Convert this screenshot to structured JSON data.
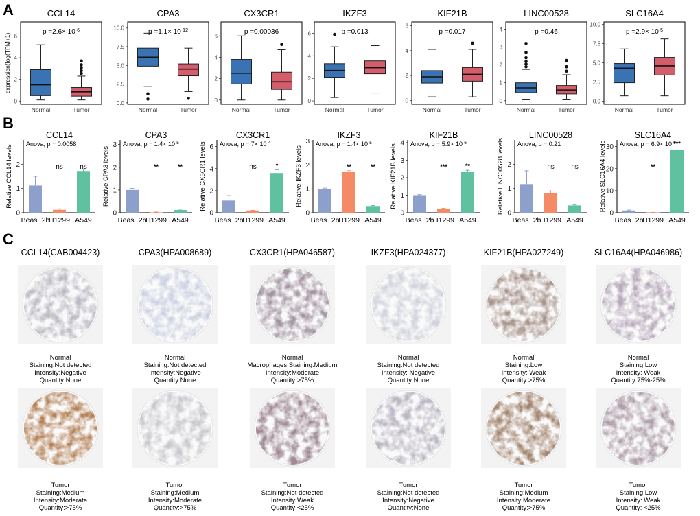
{
  "figure": {
    "panel_letters": [
      "A",
      "B",
      "C"
    ],
    "colors": {
      "normal_box": "#3a73b3",
      "tumor_box": "#d45d6b",
      "beas_bar": "#8da0cb",
      "h1299_bar": "#f58b66",
      "a549_bar": "#5fc1a0"
    }
  },
  "chart_data": [
    {
      "panel": "A",
      "type": "boxplot",
      "ylabel": "expression(log(TPM+1)",
      "categories": [
        "Normal",
        "Tumor"
      ],
      "charts": [
        {
          "title": "CCL14",
          "p_label": "p =2.6× 10",
          "p_exp": "-6",
          "ylim": [
            -0.3,
            7.3
          ],
          "yticks": [
            0,
            2,
            4,
            6
          ],
          "boxes": [
            {
              "min": 0.1,
              "q1": 0.5,
              "median": 1.5,
              "q3": 2.9,
              "max": 5.2,
              "outliers": []
            },
            {
              "min": 0.1,
              "q1": 0.45,
              "median": 0.85,
              "q3": 1.25,
              "max": 2.3,
              "outliers": [
                2.55,
                2.8,
                3.1,
                3.35,
                3.7
              ]
            }
          ]
        },
        {
          "title": "CPA3",
          "p_label": "p =1.1× 10",
          "p_exp": "-12",
          "ylim": [
            -0.2,
            10.8
          ],
          "yticks": [
            0.0,
            2.5,
            5.0,
            7.5,
            10.0
          ],
          "boxes": [
            {
              "min": 2.2,
              "q1": 4.9,
              "median": 6.1,
              "q3": 7.3,
              "max": 9.3,
              "outliers": [
                1.2,
                0.5
              ]
            },
            {
              "min": 1.5,
              "q1": 3.6,
              "median": 4.5,
              "q3": 5.2,
              "max": 7.3,
              "outliers": [
                0.6
              ]
            }
          ]
        },
        {
          "title": "CX3CR1",
          "p_label": "p =0.00036",
          "p_exp": "",
          "ylim": [
            -0.4,
            7.3
          ],
          "yticks": [
            0,
            2,
            4,
            6
          ],
          "boxes": [
            {
              "min": 0.0,
              "q1": 1.5,
              "median": 2.5,
              "q3": 3.8,
              "max": 6.0,
              "outliers": []
            },
            {
              "min": 0.0,
              "q1": 1.0,
              "median": 1.7,
              "q3": 2.6,
              "max": 4.7,
              "outliers": [
                5.2
              ]
            }
          ]
        },
        {
          "title": "IKZF3",
          "p_label": "p =0.013",
          "p_exp": "",
          "ylim": [
            -0.3,
            7.0
          ],
          "yticks": [
            0,
            2,
            4,
            6
          ],
          "boxes": [
            {
              "min": 0.3,
              "q1": 2.1,
              "median": 2.7,
              "q3": 3.3,
              "max": 4.8,
              "outliers": [
                5.9
              ]
            },
            {
              "min": 0.7,
              "q1": 2.4,
              "median": 2.95,
              "q3": 3.55,
              "max": 4.9,
              "outliers": []
            }
          ]
        },
        {
          "title": "KIF21B",
          "p_label": "p =0.017",
          "p_exp": "",
          "ylim": [
            -0.3,
            6.3
          ],
          "yticks": [
            0,
            2,
            4,
            6
          ],
          "boxes": [
            {
              "min": 0.3,
              "q1": 1.4,
              "median": 1.9,
              "q3": 2.4,
              "max": 4.1,
              "outliers": []
            },
            {
              "min": 0.3,
              "q1": 1.55,
              "median": 2.1,
              "q3": 2.65,
              "max": 4.1,
              "outliers": [
                4.6
              ]
            }
          ]
        },
        {
          "title": "LINC00528",
          "p_label": "p =0.46",
          "p_exp": "",
          "ylim": [
            -0.2,
            4.4
          ],
          "yticks": [
            0,
            1,
            2,
            3,
            4
          ],
          "boxes": [
            {
              "min": 0.05,
              "q1": 0.45,
              "median": 0.72,
              "q3": 1.0,
              "max": 1.75,
              "outliers": [
                1.9,
                2.05,
                2.2,
                2.4,
                2.7,
                3.2
              ]
            },
            {
              "min": 0.05,
              "q1": 0.38,
              "median": 0.6,
              "q3": 0.85,
              "max": 1.45,
              "outliers": [
                1.65,
                1.9,
                2.25
              ]
            }
          ]
        },
        {
          "title": "SLC16A4",
          "p_label": "p =2.9× 10",
          "p_exp": "-5",
          "ylim": [
            -0.4,
            10.3
          ],
          "yticks": [
            0.0,
            2.5,
            5.0,
            7.5,
            10.0
          ],
          "boxes": [
            {
              "min": 0.7,
              "q1": 2.4,
              "median": 4.3,
              "q3": 4.9,
              "max": 6.8,
              "outliers": []
            },
            {
              "min": 0.7,
              "q1": 3.4,
              "median": 4.6,
              "q3": 5.7,
              "max": 8.1,
              "outliers": []
            }
          ]
        }
      ]
    },
    {
      "panel": "B",
      "type": "bar",
      "categories": [
        "Beas−2b",
        "H1299",
        "A549"
      ],
      "charts": [
        {
          "title": "CCL14",
          "ylabel": "Relative CCL14 levels",
          "anova": "Anova, p = 0.0058",
          "anova_exp": "",
          "ylim": [
            0,
            3.0
          ],
          "yticks": [
            0,
            1,
            2
          ],
          "values": [
            1.12,
            0.12,
            1.72
          ],
          "errors": [
            0.38,
            0.04,
            0.08
          ],
          "sig": [
            "",
            "ns",
            "ns"
          ]
        },
        {
          "title": "CPA3",
          "ylabel": "Relative CPA3 levels",
          "anova": "Anova, p = 1.4× 10",
          "anova_exp": "-5",
          "ylim": [
            0,
            3.2
          ],
          "yticks": [
            0,
            1,
            2,
            3
          ],
          "values": [
            1.0,
            0.02,
            0.12
          ],
          "errors": [
            0.07,
            0.01,
            0.03
          ],
          "sig": [
            "",
            "**",
            "**"
          ]
        },
        {
          "title": "CX3CR1",
          "ylabel": "Relative CX3CR1 levels",
          "anova": "Anova, p = 7× 10",
          "anova_exp": "-4",
          "ylim": [
            0,
            6.6
          ],
          "yticks": [
            0,
            2,
            4,
            6
          ],
          "values": [
            1.1,
            0.2,
            3.6
          ],
          "errors": [
            0.45,
            0.02,
            0.3
          ],
          "sig": [
            "",
            "ns",
            "*"
          ]
        },
        {
          "title": "IKZF3",
          "ylabel": "Relative IKZF3 levels",
          "anova": "Anova, p = 1.4× 10",
          "anova_exp": "-5",
          "ylim": [
            0,
            3.05
          ],
          "yticks": [
            0,
            1,
            2,
            3
          ],
          "values": [
            1.0,
            1.7,
            0.28
          ],
          "errors": [
            0.03,
            0.06,
            0.02
          ],
          "sig": [
            "",
            "**",
            "**"
          ]
        },
        {
          "title": "KIF21B",
          "ylabel": "Relative KIF21B levels",
          "anova": "Anova, p = 5.9× 10",
          "anova_exp": "-6",
          "ylim": [
            0,
            4.15
          ],
          "yticks": [
            0,
            1,
            2,
            3,
            4
          ],
          "values": [
            1.0,
            0.22,
            2.32
          ],
          "errors": [
            0.03,
            0.03,
            0.1
          ],
          "sig": [
            "",
            "***",
            "**"
          ]
        },
        {
          "title": "LINC00528",
          "ylabel": "Relative LINC00528 levels",
          "anova": "Anova, p = 0.21",
          "anova_exp": "",
          "ylim": [
            0,
            3.0
          ],
          "yticks": [
            0,
            1,
            2
          ],
          "values": [
            1.18,
            0.8,
            0.3
          ],
          "errors": [
            0.55,
            0.1,
            0.03
          ],
          "sig": [
            "",
            "ns",
            "ns"
          ]
        },
        {
          "title": "SLC16A4",
          "ylabel": "Relative SLC16A4 levels",
          "anova": "Anova, p = 6.9× 10",
          "anova_exp": "-9",
          "ylim": [
            0,
            33
          ],
          "yticks": [
            0,
            10,
            20,
            30
          ],
          "values": [
            1.0,
            0.12,
            28.6
          ],
          "errors": [
            0.2,
            0.05,
            0.8
          ],
          "sig": [
            "",
            "**",
            "***"
          ]
        }
      ]
    }
  ],
  "ihc": {
    "titles": [
      "CCL14(CAB004423)",
      "CPA3(HPA008689)",
      "CX3CR1(HPA046587)",
      "IKZF3(HPA024377)",
      "KIF21B(HPA027249)",
      "SLC16A4(HPA046986)"
    ],
    "normal": [
      [
        "Normal",
        "Staining:Not detected",
        "Intensity:Negative",
        "Quantity:None"
      ],
      [
        "Normal",
        "Staining:Not detected",
        "Intensity:Negative",
        "Quantity:None"
      ],
      [
        "Normal",
        "Macrophages Staining:Medium",
        "Intensity:Moderate",
        "Quantity:>75%"
      ],
      [
        "Normal",
        "Staining:Not detected",
        "Intensity:  Negative",
        "Quantity:None"
      ],
      [
        "Normal",
        "Staining:Low",
        "Intensity:  Weak",
        "Quantity:>75%"
      ],
      [
        "Normal",
        "Staining:Low",
        "Intensity:  Weak",
        "Quantity:75%-25%"
      ]
    ],
    "tumor": [
      [
        "Tumor",
        "Staining:Medium",
        "Intensity:Moderate",
        "Quantity:>75%"
      ],
      [
        "Tumor",
        "Staining:Medium",
        "Intensity:Moderate",
        "Quantity:>75%"
      ],
      [
        "Tumor",
        "Staining:Not detected",
        "Intensity:Weak",
        "Quantity:<25%"
      ],
      [
        "Tumor",
        "Staining:Not detected",
        "Intensity:Negative",
        "Quantity:None"
      ],
      [
        "Tumor",
        "Staining:Medium",
        "Intensity:Moderate",
        "Quantity:>75%"
      ],
      [
        "Tumor",
        "Staining:Low",
        "Intensity:  Weak",
        "Quantity:  <25%"
      ]
    ],
    "normal_tissue_colors": [
      "#b9b6c0",
      "#c9cfe0",
      "#9e8f9c",
      "#cfd0da",
      "#a48f86",
      "#b4a6b8"
    ],
    "tumor_tissue_colors": [
      "#b07b4e",
      "#c7c6cc",
      "#9a8390",
      "#b8b4c0",
      "#9e7e67",
      "#ab9aa6"
    ]
  }
}
